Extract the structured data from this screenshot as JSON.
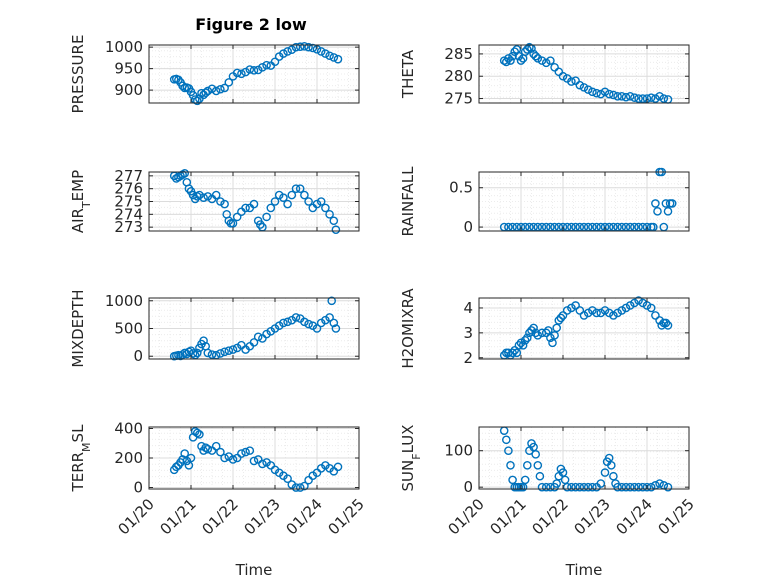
{
  "figure": {
    "title": "Figure 2 low",
    "xlabel": "Time",
    "xticklabels": [
      "01/20",
      "01/21",
      "01/22",
      "01/23",
      "01/24",
      "01/25"
    ],
    "marker_color": "#0072BD"
  },
  "chart_data": [
    {
      "type": "scatter",
      "ylabel": "PRESSURE",
      "ylim": [
        870,
        1005
      ],
      "yticks": [
        900,
        950,
        1000
      ],
      "xlim": [
        0,
        5
      ],
      "grid": true,
      "series": [
        {
          "x": [
            0.6,
            0.65,
            0.7,
            0.75,
            0.8,
            0.85,
            0.9,
            0.95,
            1.0,
            1.05,
            1.1,
            1.15,
            1.2,
            1.25,
            1.3,
            1.35,
            1.4,
            1.5,
            1.6,
            1.7,
            1.8,
            1.9,
            2.0,
            2.1,
            2.2,
            2.3,
            2.4,
            2.5,
            2.6,
            2.7,
            2.8,
            2.9,
            3.0,
            3.1,
            3.2,
            3.3,
            3.4,
            3.5,
            3.6,
            3.7,
            3.8,
            3.9,
            4.0,
            4.1,
            4.2,
            4.3,
            4.4,
            4.5
          ],
          "y": [
            925,
            926,
            924,
            918,
            910,
            905,
            906,
            904,
            896,
            888,
            878,
            875,
            880,
            893,
            889,
            894,
            898,
            903,
            898,
            902,
            905,
            918,
            932,
            940,
            938,
            942,
            948,
            946,
            947,
            953,
            958,
            957,
            966,
            978,
            985,
            990,
            994,
            1000,
            1001,
            1002,
            1000,
            998,
            995,
            990,
            985,
            980,
            976,
            972
          ]
        }
      ]
    },
    {
      "type": "scatter",
      "ylabel": "THETA",
      "ylim": [
        274,
        287
      ],
      "yticks": [
        275,
        280,
        285
      ],
      "xlim": [
        0,
        5
      ],
      "grid": true,
      "series": [
        {
          "x": [
            0.6,
            0.65,
            0.7,
            0.75,
            0.8,
            0.85,
            0.9,
            0.95,
            1.0,
            1.05,
            1.1,
            1.15,
            1.2,
            1.25,
            1.3,
            1.35,
            1.4,
            1.5,
            1.6,
            1.7,
            1.8,
            1.9,
            2.0,
            2.1,
            2.2,
            2.3,
            2.4,
            2.5,
            2.6,
            2.7,
            2.8,
            2.9,
            3.0,
            3.1,
            3.2,
            3.3,
            3.4,
            3.5,
            3.6,
            3.7,
            3.8,
            3.9,
            4.0,
            4.1,
            4.2,
            4.3,
            4.4,
            4.5
          ],
          "y": [
            283.5,
            283.2,
            284.0,
            283.5,
            284.5,
            285.5,
            286.0,
            284.5,
            283.5,
            284.0,
            285.5,
            286.0,
            286.5,
            286.2,
            285.0,
            284.5,
            284.0,
            283.5,
            283.0,
            283.5,
            282.0,
            281.0,
            280.0,
            279.5,
            278.8,
            279.0,
            278.0,
            277.5,
            277.0,
            276.5,
            276.2,
            276.0,
            276.5,
            276.0,
            275.8,
            275.5,
            275.5,
            275.3,
            275.5,
            275.2,
            275.0,
            275.0,
            275.0,
            275.2,
            275.0,
            275.5,
            275.0,
            274.8
          ]
        }
      ]
    },
    {
      "type": "scatter",
      "ylabel": "AIR_TEMP",
      "ylim": [
        272.7,
        277.3
      ],
      "yticks": [
        273,
        274,
        275,
        276,
        277
      ],
      "xlim": [
        0,
        5
      ],
      "grid": true,
      "series": [
        {
          "x": [
            0.6,
            0.65,
            0.7,
            0.75,
            0.8,
            0.85,
            0.9,
            0.95,
            1.0,
            1.05,
            1.1,
            1.15,
            1.2,
            1.3,
            1.4,
            1.5,
            1.6,
            1.7,
            1.8,
            1.85,
            1.9,
            1.95,
            2.0,
            2.1,
            2.2,
            2.3,
            2.4,
            2.5,
            2.6,
            2.65,
            2.7,
            2.8,
            2.9,
            3.0,
            3.1,
            3.2,
            3.3,
            3.4,
            3.5,
            3.6,
            3.7,
            3.8,
            3.9,
            4.0,
            4.1,
            4.2,
            4.3,
            4.4,
            4.45
          ],
          "y": [
            277.0,
            276.8,
            276.9,
            277.0,
            277.1,
            277.2,
            276.5,
            276.0,
            275.8,
            275.5,
            275.2,
            275.4,
            275.5,
            275.3,
            275.4,
            275.2,
            275.5,
            275.0,
            274.8,
            274.0,
            273.5,
            273.3,
            273.3,
            273.8,
            274.2,
            274.5,
            274.5,
            274.8,
            273.5,
            273.2,
            273.0,
            273.8,
            274.5,
            275.0,
            275.5,
            275.3,
            274.8,
            275.5,
            276.0,
            276.0,
            275.5,
            275.0,
            274.5,
            274.8,
            275.0,
            274.5,
            274.0,
            273.5,
            272.8
          ]
        }
      ]
    },
    {
      "type": "scatter",
      "ylabel": "RAINFALL",
      "ylim": [
        -0.05,
        0.7
      ],
      "yticks": [
        0,
        0.5
      ],
      "yticklabels": [
        "0",
        "0.5"
      ],
      "xlim": [
        0,
        5
      ],
      "grid": true,
      "series": [
        {
          "x": [
            0.6,
            0.7,
            0.8,
            0.9,
            1.0,
            1.1,
            1.2,
            1.3,
            1.4,
            1.5,
            1.6,
            1.7,
            1.8,
            1.9,
            2.0,
            2.1,
            2.2,
            2.3,
            2.4,
            2.5,
            2.6,
            2.7,
            2.8,
            2.9,
            3.0,
            3.1,
            3.2,
            3.3,
            3.4,
            3.5,
            3.6,
            3.7,
            3.8,
            3.9,
            4.0,
            4.1,
            4.15,
            4.2,
            4.25,
            4.3,
            4.35,
            4.4,
            4.45,
            4.5,
            4.55,
            4.6
          ],
          "y": [
            0,
            0,
            0,
            0,
            0,
            0,
            0,
            0,
            0,
            0,
            0,
            0,
            0,
            0,
            0,
            0,
            0,
            0,
            0,
            0,
            0,
            0,
            0,
            0,
            0,
            0,
            0,
            0,
            0,
            0,
            0,
            0,
            0,
            0,
            0,
            0,
            0,
            0.3,
            0.2,
            0.7,
            0.7,
            0,
            0.3,
            0.2,
            0.3,
            0.3
          ]
        }
      ]
    },
    {
      "type": "scatter",
      "ylabel": "MIXDEPTH",
      "ylim": [
        -50,
        1050
      ],
      "yticks": [
        0,
        500,
        1000
      ],
      "xlim": [
        0,
        5
      ],
      "grid": true,
      "series": [
        {
          "x": [
            0.6,
            0.65,
            0.7,
            0.75,
            0.8,
            0.85,
            0.9,
            0.95,
            1.0,
            1.05,
            1.1,
            1.15,
            1.2,
            1.25,
            1.3,
            1.35,
            1.4,
            1.5,
            1.6,
            1.7,
            1.8,
            1.9,
            2.0,
            2.1,
            2.2,
            2.3,
            2.4,
            2.5,
            2.6,
            2.7,
            2.8,
            2.9,
            3.0,
            3.1,
            3.2,
            3.3,
            3.4,
            3.5,
            3.6,
            3.7,
            3.8,
            3.9,
            4.0,
            4.1,
            4.2,
            4.3,
            4.35,
            4.4,
            4.45
          ],
          "y": [
            0,
            10,
            20,
            5,
            30,
            60,
            40,
            80,
            100,
            50,
            20,
            60,
            150,
            220,
            280,
            180,
            60,
            30,
            20,
            50,
            80,
            100,
            120,
            150,
            200,
            120,
            180,
            250,
            350,
            320,
            400,
            450,
            500,
            550,
            600,
            620,
            650,
            700,
            680,
            620,
            580,
            550,
            500,
            600,
            650,
            700,
            1000,
            600,
            500
          ]
        }
      ]
    },
    {
      "type": "scatter",
      "ylabel": "H2OMIXRA",
      "ylim": [
        1.95,
        4.4
      ],
      "yticks": [
        2,
        3,
        4
      ],
      "xlim": [
        0,
        5
      ],
      "grid": true,
      "series": [
        {
          "x": [
            0.6,
            0.65,
            0.7,
            0.75,
            0.8,
            0.85,
            0.9,
            0.95,
            1.0,
            1.05,
            1.1,
            1.15,
            1.2,
            1.25,
            1.3,
            1.35,
            1.4,
            1.5,
            1.6,
            1.65,
            1.7,
            1.75,
            1.8,
            1.85,
            1.9,
            1.95,
            2.0,
            2.1,
            2.2,
            2.3,
            2.4,
            2.5,
            2.6,
            2.7,
            2.8,
            2.9,
            3.0,
            3.1,
            3.2,
            3.3,
            3.4,
            3.5,
            3.6,
            3.7,
            3.8,
            3.9,
            4.0,
            4.1,
            4.2,
            4.3,
            4.35,
            4.4,
            4.45,
            4.5
          ],
          "y": [
            2.1,
            2.2,
            2.2,
            2.1,
            2.2,
            2.3,
            2.2,
            2.5,
            2.6,
            2.5,
            2.7,
            2.8,
            3.0,
            3.1,
            3.2,
            3.0,
            2.9,
            3.0,
            3.0,
            3.1,
            2.8,
            2.6,
            2.9,
            3.2,
            3.5,
            3.6,
            3.7,
            3.9,
            4.0,
            4.1,
            3.9,
            3.7,
            3.8,
            3.9,
            3.8,
            3.8,
            3.9,
            3.8,
            3.7,
            3.8,
            3.9,
            4.0,
            4.1,
            4.2,
            4.3,
            4.2,
            4.1,
            4.0,
            3.7,
            3.5,
            3.3,
            3.4,
            3.4,
            3.3
          ]
        }
      ]
    },
    {
      "type": "scatter",
      "ylabel": "TERR_MSL",
      "ylim": [
        -10,
        410
      ],
      "yticks": [
        0,
        200,
        400
      ],
      "xlim": [
        0,
        5
      ],
      "grid": true,
      "series": [
        {
          "x": [
            0.6,
            0.65,
            0.7,
            0.75,
            0.8,
            0.85,
            0.9,
            0.95,
            1.0,
            1.05,
            1.1,
            1.15,
            1.2,
            1.25,
            1.3,
            1.35,
            1.4,
            1.5,
            1.6,
            1.7,
            1.8,
            1.9,
            2.0,
            2.1,
            2.2,
            2.3,
            2.4,
            2.5,
            2.6,
            2.7,
            2.8,
            2.9,
            3.0,
            3.1,
            3.2,
            3.3,
            3.4,
            3.5,
            3.6,
            3.7,
            3.8,
            3.9,
            4.0,
            4.1,
            4.2,
            4.3,
            4.4,
            4.5
          ],
          "y": [
            120,
            140,
            150,
            170,
            190,
            230,
            180,
            150,
            200,
            340,
            380,
            370,
            360,
            280,
            250,
            270,
            260,
            250,
            280,
            240,
            200,
            210,
            190,
            200,
            230,
            240,
            250,
            180,
            190,
            160,
            170,
            150,
            120,
            100,
            80,
            60,
            20,
            0,
            0,
            10,
            50,
            80,
            100,
            130,
            150,
            130,
            110,
            140
          ]
        }
      ]
    },
    {
      "type": "scatter",
      "ylabel": "SUN_FLUX",
      "ylim": [
        -5,
        165
      ],
      "yticks": [
        0,
        100
      ],
      "xlim": [
        0,
        5
      ],
      "grid": true,
      "series": [
        {
          "x": [
            0.6,
            0.65,
            0.7,
            0.75,
            0.8,
            0.85,
            0.9,
            0.95,
            1.0,
            1.05,
            1.1,
            1.15,
            1.2,
            1.25,
            1.3,
            1.35,
            1.4,
            1.45,
            1.5,
            1.6,
            1.7,
            1.8,
            1.85,
            1.9,
            1.95,
            2.0,
            2.05,
            2.1,
            2.2,
            2.3,
            2.4,
            2.5,
            2.6,
            2.7,
            2.8,
            2.9,
            3.0,
            3.05,
            3.1,
            3.15,
            3.2,
            3.25,
            3.3,
            3.4,
            3.5,
            3.6,
            3.7,
            3.8,
            3.9,
            4.0,
            4.1,
            4.2,
            4.3,
            4.4,
            4.5
          ],
          "y": [
            155,
            130,
            100,
            60,
            20,
            0,
            0,
            0,
            0,
            0,
            20,
            60,
            100,
            120,
            110,
            90,
            60,
            30,
            0,
            0,
            0,
            0,
            10,
            30,
            50,
            40,
            20,
            0,
            0,
            0,
            0,
            0,
            0,
            0,
            0,
            10,
            40,
            70,
            80,
            60,
            30,
            10,
            0,
            0,
            0,
            0,
            0,
            0,
            0,
            0,
            0,
            5,
            10,
            5,
            0
          ]
        }
      ]
    }
  ]
}
